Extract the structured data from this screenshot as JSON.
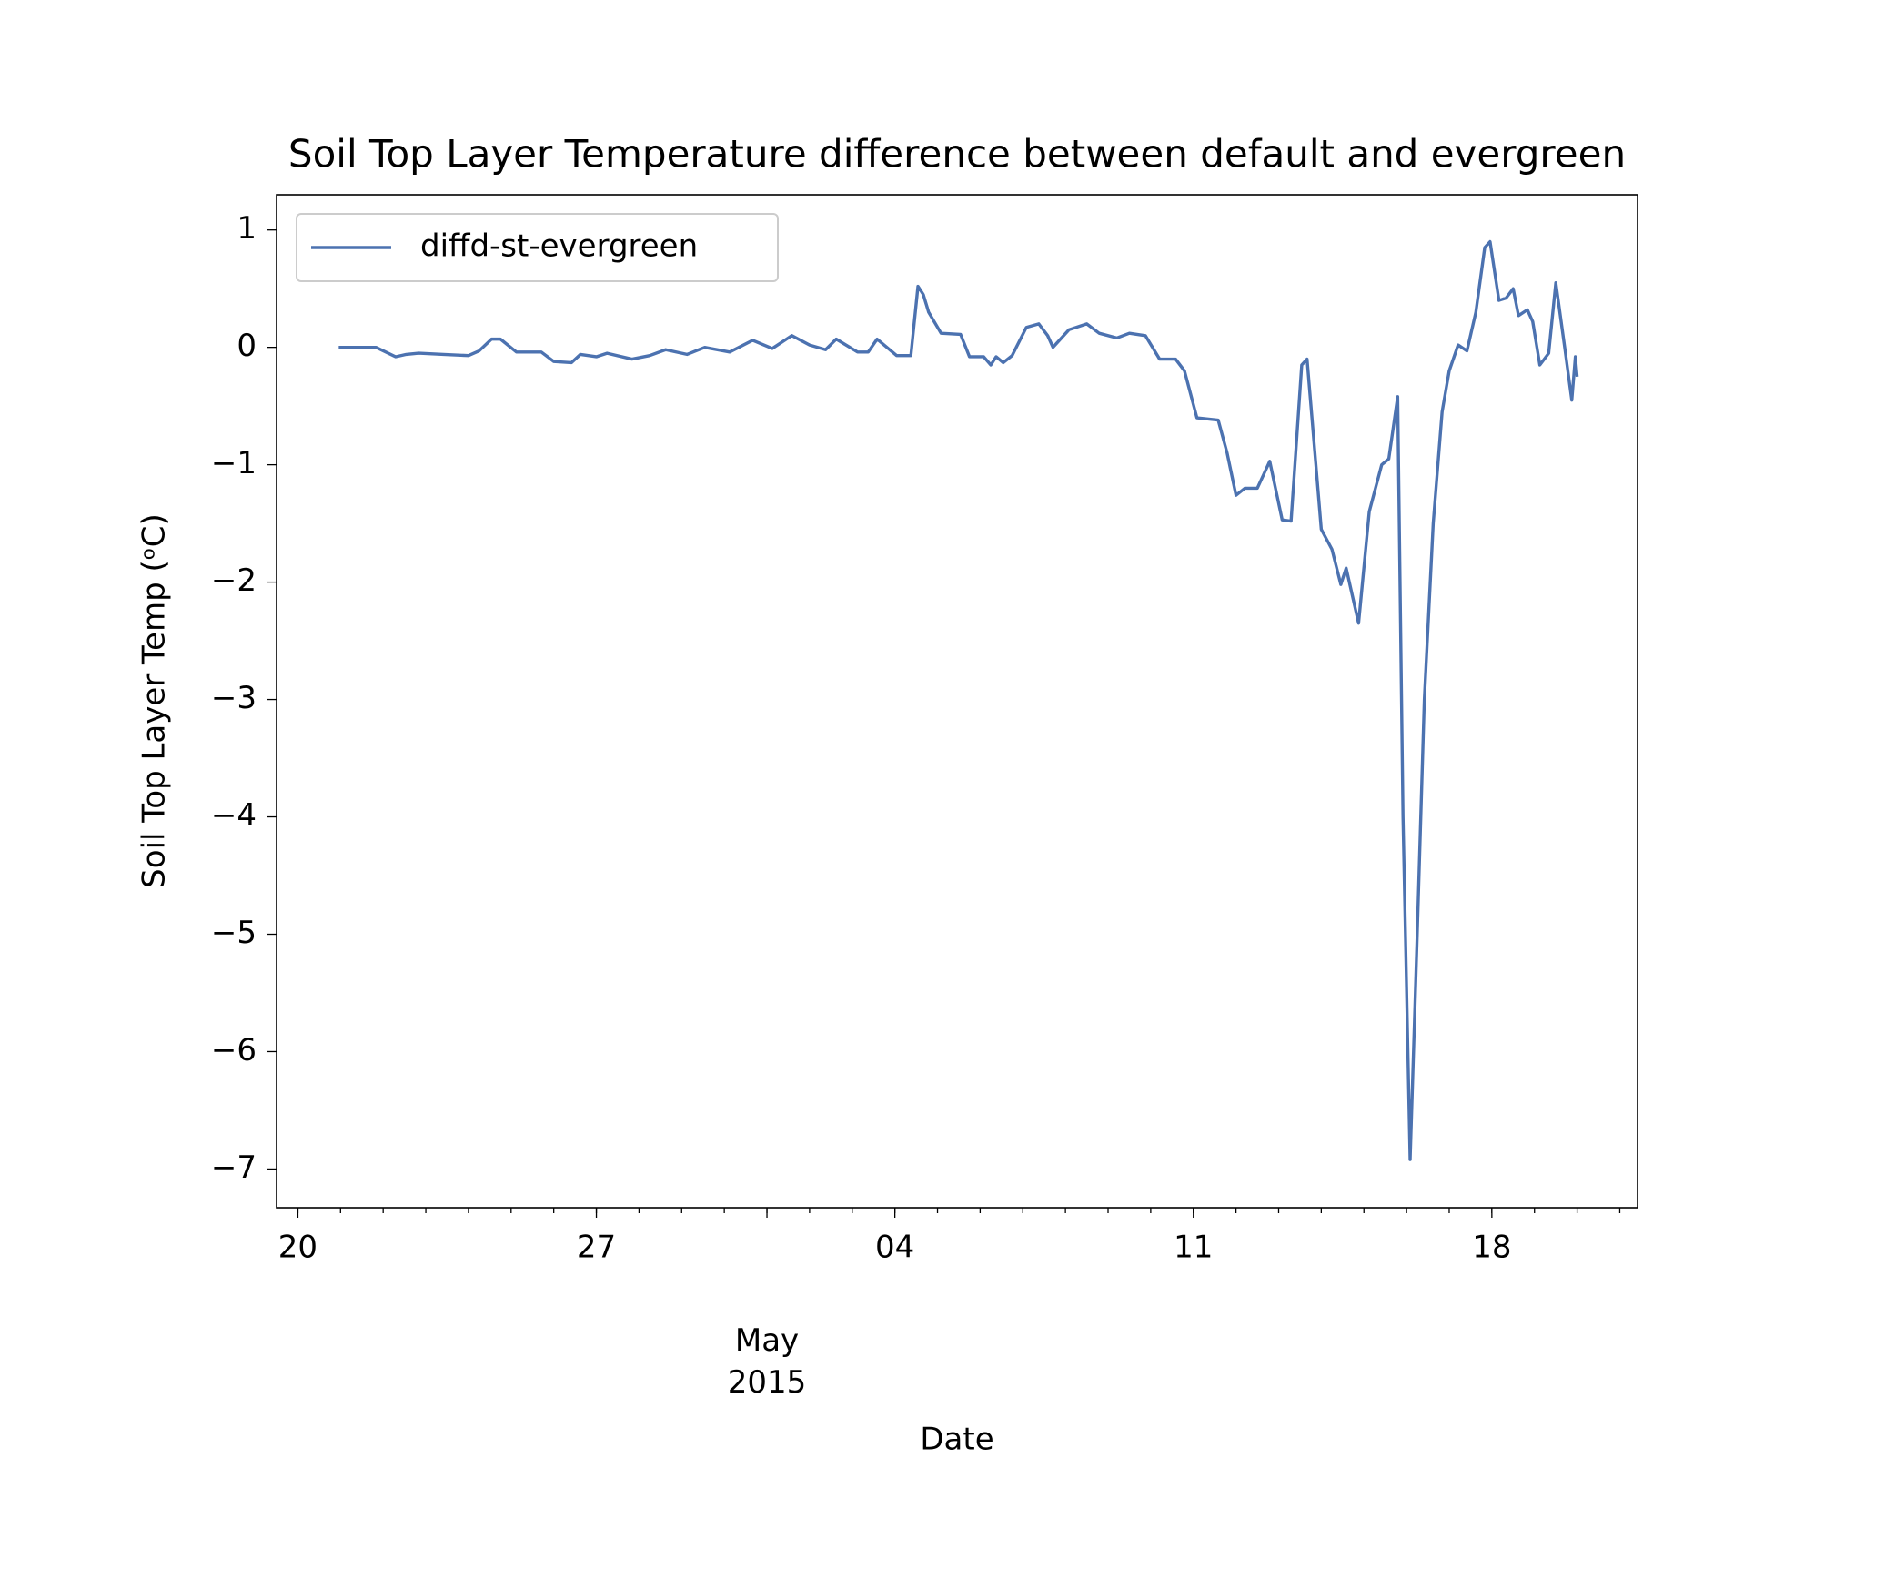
{
  "chart_data": {
    "type": "line",
    "title": "Soil Top Layer Temperature difference between default and evergreen",
    "x_label": "Date",
    "y_label": "Soil Top Layer Temp (ᵒC)",
    "x": [
      "2015-04-20T23:00",
      "2015-04-21T07:00",
      "2015-04-21T20:00",
      "2015-04-22T07:00",
      "2015-04-22T13:00",
      "2015-04-22T20:00",
      "2015-04-23T10:00",
      "2015-04-24T00:00",
      "2015-04-24T06:00",
      "2015-04-24T13:00",
      "2015-04-24T18:00",
      "2015-04-25T03:00",
      "2015-04-25T17:00",
      "2015-04-26T00:00",
      "2015-04-26T10:00",
      "2015-04-26T15:00",
      "2015-04-27T00:00",
      "2015-04-27T06:00",
      "2015-04-27T20:00",
      "2015-04-28T06:00",
      "2015-04-28T15:00",
      "2015-04-29T03:00",
      "2015-04-29T13:00",
      "2015-04-30T03:00",
      "2015-04-30T16:00",
      "2015-05-01T03:00",
      "2015-05-01T14:00",
      "2015-05-02T00:00",
      "2015-05-02T09:00",
      "2015-05-02T15:00",
      "2015-05-03T03:00",
      "2015-05-03T09:00",
      "2015-05-03T14:00",
      "2015-05-04T01:00",
      "2015-05-04T09:00",
      "2015-05-04T13:00",
      "2015-05-04T16:00",
      "2015-05-04T19:00",
      "2015-05-05T02:00",
      "2015-05-05T13:00",
      "2015-05-05T18:00",
      "2015-05-06T02:00",
      "2015-05-06T06:00",
      "2015-05-06T09:00",
      "2015-05-06T13:00",
      "2015-05-06T18:00",
      "2015-05-07T02:00",
      "2015-05-07T09:00",
      "2015-05-07T14:00",
      "2015-05-07T17:00",
      "2015-05-08T02:00",
      "2015-05-08T12:00",
      "2015-05-08T19:00",
      "2015-05-09T05:00",
      "2015-05-09T12:00",
      "2015-05-09T21:00",
      "2015-05-10T05:00",
      "2015-05-10T14:00",
      "2015-05-10T19:00",
      "2015-05-11T02:00",
      "2015-05-11T14:00",
      "2015-05-11T19:00",
      "2015-05-12T00:00",
      "2015-05-12T05:00",
      "2015-05-12T12:00",
      "2015-05-12T19:00",
      "2015-05-13T02:00",
      "2015-05-13T07:00",
      "2015-05-13T13:00",
      "2015-05-13T16:00",
      "2015-05-14T00:00",
      "2015-05-14T06:00",
      "2015-05-14T11:00",
      "2015-05-14T14:00",
      "2015-05-14T21:00",
      "2015-05-15T03:00",
      "2015-05-15T10:00",
      "2015-05-15T14:00",
      "2015-05-15T19:00",
      "2015-05-15T22:00",
      "2015-05-16T02:00",
      "2015-05-16T06:00",
      "2015-05-16T10:00",
      "2015-05-16T15:00",
      "2015-05-16T20:00",
      "2015-05-17T00:00",
      "2015-05-17T05:00",
      "2015-05-17T10:00",
      "2015-05-17T15:00",
      "2015-05-17T20:00",
      "2015-05-17T23:00",
      "2015-05-18T04:00",
      "2015-05-18T08:00",
      "2015-05-18T12:00",
      "2015-05-18T15:00",
      "2015-05-18T20:00",
      "2015-05-18T23:00",
      "2015-05-19T03:00",
      "2015-05-19T08:00",
      "2015-05-19T12:00",
      "2015-05-19T17:00",
      "2015-05-19T21:00",
      "2015-05-19T23:00",
      "2015-05-20T00:00"
    ],
    "series": [
      {
        "name": "diffd-st-evergreen",
        "color": "#4c72b0",
        "values": [
          0.0,
          0.0,
          0.0,
          -0.08,
          -0.06,
          -0.05,
          -0.06,
          -0.07,
          -0.03,
          0.07,
          0.07,
          -0.04,
          -0.04,
          -0.12,
          -0.13,
          -0.06,
          -0.08,
          -0.05,
          -0.1,
          -0.07,
          -0.02,
          -0.06,
          0.0,
          -0.04,
          0.06,
          -0.01,
          0.1,
          0.02,
          -0.02,
          0.07,
          -0.04,
          -0.04,
          0.07,
          -0.07,
          -0.07,
          0.52,
          0.45,
          0.3,
          0.12,
          0.11,
          -0.08,
          -0.08,
          -0.15,
          -0.08,
          -0.13,
          -0.07,
          0.17,
          0.2,
          0.1,
          0.0,
          0.15,
          0.2,
          0.12,
          0.08,
          0.12,
          0.1,
          -0.1,
          -0.1,
          -0.2,
          -0.6,
          -0.62,
          -0.9,
          -1.26,
          -1.2,
          -1.2,
          -0.97,
          -1.47,
          -1.48,
          -0.15,
          -0.1,
          -1.55,
          -1.72,
          -2.02,
          -1.88,
          -2.35,
          -1.4,
          -1.0,
          -0.95,
          -0.42,
          -4.0,
          -6.92,
          -5.0,
          -3.0,
          -1.5,
          -0.55,
          -0.2,
          0.02,
          -0.03,
          0.3,
          0.85,
          0.9,
          0.4,
          0.42,
          0.5,
          0.27,
          0.32,
          0.22,
          -0.15,
          -0.05,
          0.55,
          0.0,
          -0.45,
          -0.08,
          -0.25
        ]
      }
    ],
    "xlim": [
      "2015-04-19T12:00",
      "2015-05-21T10:00"
    ],
    "xticks": [
      {
        "value": "2015-04-20T00:00",
        "label": "20"
      },
      {
        "value": "2015-04-27T00:00",
        "label": "27"
      },
      {
        "value": "2015-05-01T00:00",
        "label": "May\n2015"
      },
      {
        "value": "2015-05-04T00:00",
        "label": "04"
      },
      {
        "value": "2015-05-11T00:00",
        "label": "11"
      },
      {
        "value": "2015-05-18T00:00",
        "label": "18"
      }
    ],
    "ylim": [
      -7.33,
      1.3
    ],
    "yticks": [
      {
        "value": 1,
        "label": "1"
      },
      {
        "value": 0,
        "label": "0"
      },
      {
        "value": -1,
        "label": "−1"
      },
      {
        "value": -2,
        "label": "−2"
      },
      {
        "value": -3,
        "label": "−3"
      },
      {
        "value": -4,
        "label": "−4"
      },
      {
        "value": -5,
        "label": "−5"
      },
      {
        "value": -6,
        "label": "−6"
      },
      {
        "value": -7,
        "label": "−7"
      }
    ],
    "legend": "upper left",
    "grid": false
  }
}
